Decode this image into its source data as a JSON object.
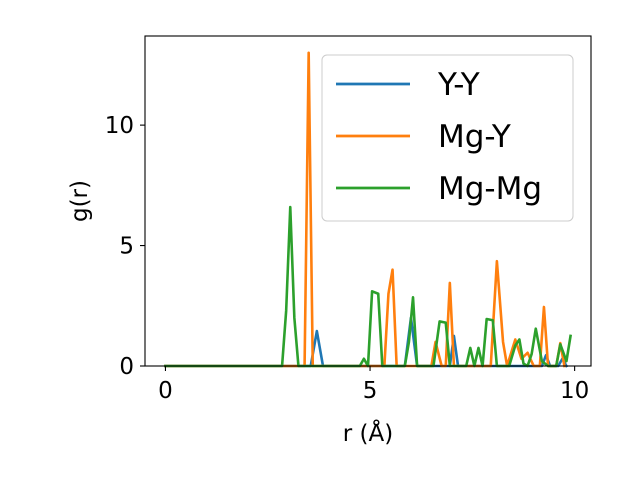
{
  "chart_data": {
    "type": "line",
    "title": "",
    "xlabel": "r (Å)",
    "ylabel": "g(r)",
    "xlim": [
      -0.5,
      10.4
    ],
    "ylim": [
      0,
      13.7
    ],
    "xticks": [
      0,
      5,
      10
    ],
    "yticks": [
      0,
      5,
      10
    ],
    "x_tick_labels": [
      "0",
      "5",
      "10"
    ],
    "y_tick_labels": [
      "0",
      "5",
      "10"
    ],
    "grid": false,
    "legend_position": "top-right",
    "series": [
      {
        "name": "Y-Y",
        "color": "#1f77b4",
        "points": [
          [
            0,
            0
          ],
          [
            3.55,
            0
          ],
          [
            3.7,
            1.45
          ],
          [
            3.85,
            0
          ],
          [
            5.85,
            0
          ],
          [
            6.0,
            2.0
          ],
          [
            6.15,
            0
          ],
          [
            6.95,
            0
          ],
          [
            7.05,
            1.25
          ],
          [
            7.15,
            0
          ],
          [
            9.2,
            0
          ],
          [
            9.3,
            0.45
          ],
          [
            9.4,
            0
          ],
          [
            9.6,
            0
          ],
          [
            9.7,
            0.3
          ],
          [
            9.8,
            0
          ]
        ]
      },
      {
        "name": "Mg-Y",
        "color": "#ff7f0e",
        "points": [
          [
            0,
            0
          ],
          [
            3.4,
            0
          ],
          [
            3.5,
            13.0
          ],
          [
            3.6,
            0
          ],
          [
            5.35,
            0
          ],
          [
            5.45,
            3.0
          ],
          [
            5.55,
            4.0
          ],
          [
            5.65,
            0
          ],
          [
            6.5,
            0
          ],
          [
            6.6,
            1.0
          ],
          [
            6.75,
            0
          ],
          [
            6.85,
            0
          ],
          [
            6.95,
            3.45
          ],
          [
            7.05,
            0
          ],
          [
            7.95,
            0
          ],
          [
            8.1,
            4.35
          ],
          [
            8.25,
            1.0
          ],
          [
            8.35,
            0
          ],
          [
            8.55,
            1.1
          ],
          [
            8.7,
            0.3
          ],
          [
            8.85,
            0.55
          ],
          [
            9.0,
            0
          ],
          [
            9.15,
            0
          ],
          [
            9.25,
            2.45
          ],
          [
            9.35,
            0
          ],
          [
            9.55,
            0
          ],
          [
            9.65,
            0.95
          ],
          [
            9.75,
            0
          ]
        ]
      },
      {
        "name": "Mg-Mg",
        "color": "#2ca02c",
        "points": [
          [
            0,
            0
          ],
          [
            2.85,
            0
          ],
          [
            2.95,
            2.3
          ],
          [
            3.05,
            6.6
          ],
          [
            3.15,
            2.0
          ],
          [
            3.25,
            0
          ],
          [
            4.75,
            0
          ],
          [
            4.85,
            0.3
          ],
          [
            4.95,
            0
          ],
          [
            5.05,
            3.1
          ],
          [
            5.2,
            3.0
          ],
          [
            5.3,
            0
          ],
          [
            5.85,
            0
          ],
          [
            5.95,
            1.0
          ],
          [
            6.05,
            2.85
          ],
          [
            6.15,
            0
          ],
          [
            6.55,
            0
          ],
          [
            6.7,
            1.85
          ],
          [
            6.85,
            1.8
          ],
          [
            6.95,
            0
          ],
          [
            7.35,
            0
          ],
          [
            7.45,
            0.75
          ],
          [
            7.55,
            0
          ],
          [
            7.65,
            0.75
          ],
          [
            7.75,
            0
          ],
          [
            7.85,
            1.95
          ],
          [
            8.0,
            1.9
          ],
          [
            8.1,
            0
          ],
          [
            8.4,
            0
          ],
          [
            8.55,
            0.85
          ],
          [
            8.65,
            1.1
          ],
          [
            8.75,
            0.1
          ],
          [
            8.85,
            0
          ],
          [
            8.95,
            0.5
          ],
          [
            9.05,
            1.55
          ],
          [
            9.2,
            0.2
          ],
          [
            9.35,
            0
          ],
          [
            9.55,
            0
          ],
          [
            9.65,
            0.9
          ],
          [
            9.8,
            0.2
          ],
          [
            9.9,
            1.25
          ]
        ]
      }
    ]
  }
}
